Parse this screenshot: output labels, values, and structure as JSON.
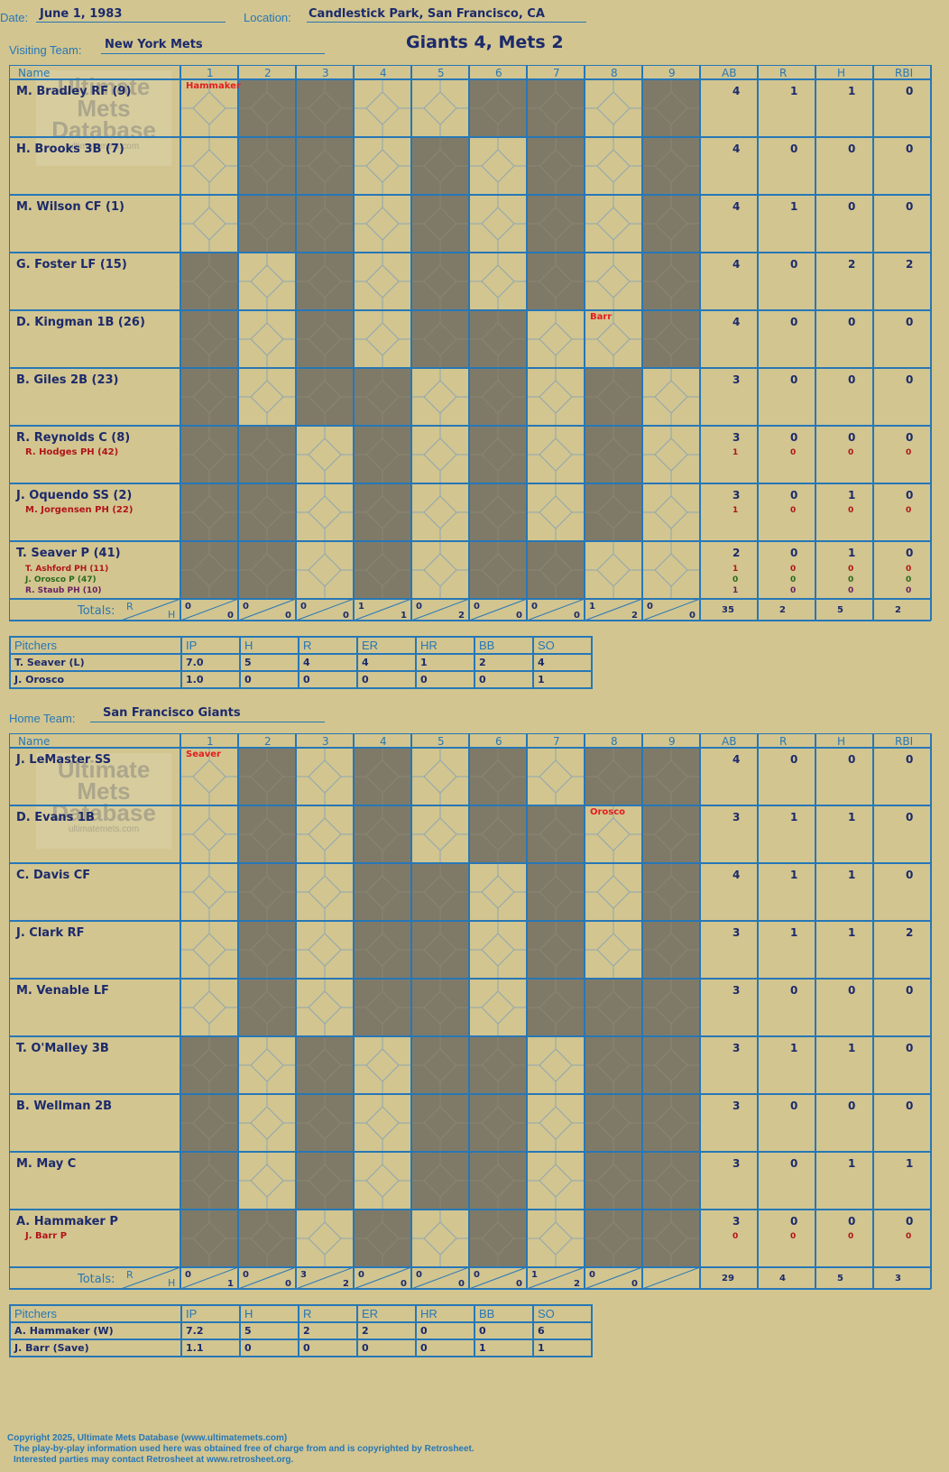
{
  "header": {
    "date_label": "Date:",
    "date": "June 1, 1983",
    "location_label": "Location:",
    "location": "Candlestick Park, San Francisco, CA",
    "result": "Giants 4, Mets 2"
  },
  "watermark": {
    "line1": "Ultimate",
    "line2": "Mets",
    "line3": "Database",
    "url": "ultimatemets.com"
  },
  "columns": {
    "name": "Name",
    "innings": [
      "1",
      "2",
      "3",
      "4",
      "5",
      "6",
      "7",
      "8",
      "9"
    ],
    "stats": [
      "AB",
      "R",
      "H",
      "RBI"
    ],
    "totals": "Totals:",
    "r": "R",
    "h": "H"
  },
  "visitors": {
    "team_label": "Visiting Team:",
    "team": "New York Mets",
    "players": [
      {
        "name": "M. Bradley RF (9)",
        "subs": [],
        "stats": [
          [
            "4",
            "1",
            "1",
            "0"
          ]
        ],
        "note": "Hammaker"
      },
      {
        "name": "H. Brooks 3B (7)",
        "subs": [],
        "stats": [
          [
            "4",
            "0",
            "0",
            "0"
          ]
        ]
      },
      {
        "name": "M. Wilson CF (1)",
        "subs": [],
        "stats": [
          [
            "4",
            "1",
            "0",
            "0"
          ]
        ]
      },
      {
        "name": "G. Foster LF (15)",
        "subs": [],
        "stats": [
          [
            "4",
            "0",
            "2",
            "2"
          ]
        ]
      },
      {
        "name": "D. Kingman 1B (26)",
        "subs": [],
        "stats": [
          [
            "4",
            "0",
            "0",
            "0"
          ]
        ],
        "note": "Barr"
      },
      {
        "name": "B. Giles 2B (23)",
        "subs": [],
        "stats": [
          [
            "3",
            "0",
            "0",
            "0"
          ]
        ]
      },
      {
        "name": "R. Reynolds C (8)",
        "subs": [
          {
            "name": "R. Hodges PH (42)",
            "color": "#b1141a"
          }
        ],
        "stats": [
          [
            "3",
            "0",
            "0",
            "0"
          ],
          [
            "1",
            "0",
            "0",
            "0"
          ]
        ]
      },
      {
        "name": "J. Oquendo SS (2)",
        "subs": [
          {
            "name": "M. Jorgensen PH (22)",
            "color": "#b1141a"
          }
        ],
        "stats": [
          [
            "3",
            "0",
            "1",
            "0"
          ],
          [
            "1",
            "0",
            "0",
            "0"
          ]
        ]
      },
      {
        "name": "T. Seaver P (41)",
        "subs": [
          {
            "name": "T. Ashford PH (11)",
            "color": "#b1141a"
          },
          {
            "name": "J. Orosco P (47)",
            "color": "#2b6a1c"
          },
          {
            "name": "R. Staub PH (10)",
            "color": "#6a1f63"
          }
        ],
        "stats": [
          [
            "2",
            "0",
            "1",
            "0"
          ],
          [
            "1",
            "0",
            "0",
            "0"
          ],
          [
            "0",
            "0",
            "0",
            "0"
          ],
          [
            "1",
            "0",
            "0",
            "0"
          ]
        ]
      }
    ],
    "inning_totals": [
      [
        "0",
        "0"
      ],
      [
        "0",
        "0"
      ],
      [
        "0",
        "0"
      ],
      [
        "1",
        "1"
      ],
      [
        "0",
        "2"
      ],
      [
        "0",
        "0"
      ],
      [
        "0",
        "0"
      ],
      [
        "1",
        "2"
      ],
      [
        "0",
        "0"
      ]
    ],
    "totals": [
      "35",
      "2",
      "5",
      "2"
    ],
    "pitchers_label": "Pitchers",
    "pitch_cols": [
      "IP",
      "H",
      "R",
      "ER",
      "HR",
      "BB",
      "SO"
    ],
    "pitchers": [
      {
        "name": "T. Seaver (L)",
        "stats": [
          "7.0",
          "5",
          "4",
          "4",
          "1",
          "2",
          "4"
        ]
      },
      {
        "name": "J. Orosco",
        "stats": [
          "1.0",
          "0",
          "0",
          "0",
          "0",
          "0",
          "1"
        ]
      }
    ]
  },
  "home": {
    "team_label": "Home Team:",
    "team": "San Francisco Giants",
    "players": [
      {
        "name": "J. LeMaster SS",
        "subs": [],
        "stats": [
          [
            "4",
            "0",
            "0",
            "0"
          ]
        ],
        "note": "Seaver"
      },
      {
        "name": "D. Evans 1B",
        "subs": [],
        "stats": [
          [
            "3",
            "1",
            "1",
            "0"
          ]
        ],
        "note": "Orosco"
      },
      {
        "name": "C. Davis CF",
        "subs": [],
        "stats": [
          [
            "4",
            "1",
            "1",
            "0"
          ]
        ]
      },
      {
        "name": "J. Clark RF",
        "subs": [],
        "stats": [
          [
            "3",
            "1",
            "1",
            "2"
          ]
        ]
      },
      {
        "name": "M. Venable LF",
        "subs": [],
        "stats": [
          [
            "3",
            "0",
            "0",
            "0"
          ]
        ]
      },
      {
        "name": "T. O'Malley 3B",
        "subs": [],
        "stats": [
          [
            "3",
            "1",
            "1",
            "0"
          ]
        ]
      },
      {
        "name": "B. Wellman 2B",
        "subs": [],
        "stats": [
          [
            "3",
            "0",
            "0",
            "0"
          ]
        ]
      },
      {
        "name": "M. May C",
        "subs": [],
        "stats": [
          [
            "3",
            "0",
            "1",
            "1"
          ]
        ]
      },
      {
        "name": "A. Hammaker P",
        "subs": [
          {
            "name": "J. Barr P",
            "color": "#b1141a"
          }
        ],
        "stats": [
          [
            "3",
            "0",
            "0",
            "0"
          ],
          [
            "0",
            "0",
            "0",
            "0"
          ]
        ]
      }
    ],
    "inning_totals": [
      [
        "0",
        "1"
      ],
      [
        "0",
        "0"
      ],
      [
        "3",
        "2"
      ],
      [
        "0",
        "0"
      ],
      [
        "0",
        "0"
      ],
      [
        "0",
        "0"
      ],
      [
        "1",
        "2"
      ],
      [
        "0",
        "0"
      ],
      null
    ],
    "totals": [
      "29",
      "4",
      "5",
      "3"
    ],
    "pitchers_label": "Pitchers",
    "pitch_cols": [
      "IP",
      "H",
      "R",
      "ER",
      "HR",
      "BB",
      "SO"
    ],
    "pitchers": [
      {
        "name": "A. Hammaker (W)",
        "stats": [
          "7.2",
          "5",
          "2",
          "2",
          "0",
          "0",
          "6"
        ]
      },
      {
        "name": "J. Barr (Save)",
        "stats": [
          "1.1",
          "0",
          "0",
          "0",
          "0",
          "1",
          "1"
        ]
      }
    ]
  },
  "footer": {
    "line1": "Copyright 2025, Ultimate Mets Database (www.ultimatemets.com)",
    "line2": "The play-by-play information used here was obtained free of charge from and is copyrighted by Retrosheet.",
    "line3": "Interested parties may contact Retrosheet at www.retrosheet.org."
  }
}
